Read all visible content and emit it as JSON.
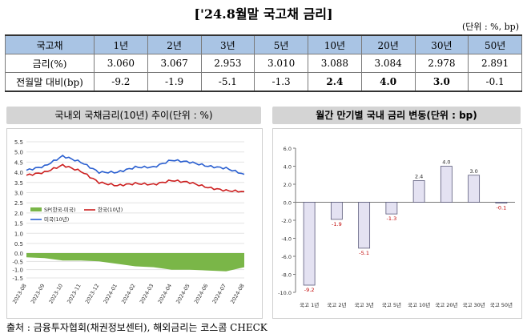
{
  "title": "['24.8월말 국고채 금리]",
  "unit": "(단위 : %, bp)",
  "table": {
    "corner": "국고채",
    "columns": [
      "1년",
      "2년",
      "3년",
      "5년",
      "10년",
      "20년",
      "30년",
      "50년"
    ],
    "rows": [
      {
        "label": "금리(%)",
        "values": [
          "3.060",
          "3.067",
          "2.953",
          "3.010",
          "3.088",
          "3.084",
          "2.978",
          "2.891"
        ]
      },
      {
        "label": "전월말 대비(bp)",
        "values": [
          "-9.2",
          "-1.9",
          "-5.1",
          "-1.3",
          "2.4",
          "4.0",
          "3.0",
          "-0.1"
        ]
      }
    ]
  },
  "left_panel_title": "국내외 국채금리(10년) 추이(단위 : %)",
  "right_panel_title": "월간 만기별 국내 금리 변동(단위 : bp)",
  "source": "출처 : 금융투자협회(채권정보센터), 해외금리는 코스콤 CHECK",
  "colors": {
    "us": "#2a5fd0",
    "kr": "#cc1f1f",
    "spread": "#7ab648",
    "bar_fill": "#e4e2f2",
    "bar_stroke": "#5a5a7a"
  },
  "chart_data": [
    {
      "type": "line",
      "title": "국내외 국채금리(10년) 추이(단위 : %)",
      "x_ticks": [
        "2023-08",
        "2023-09",
        "2023-10",
        "2023-11",
        "2023-12",
        "2024-01",
        "2024-02",
        "2024-03",
        "2024-04",
        "2024-05",
        "2024-06",
        "2024-07",
        "2024-08"
      ],
      "y_ticks_top": [
        "5.5",
        "5.0",
        "4.5",
        "4.0",
        "3.5",
        "3.0",
        "2.5",
        "2.0",
        "1.5",
        "1.0",
        "0.5"
      ],
      "y_ticks_bottom": [
        "0.0",
        "-0.5",
        "-1.0",
        "-1.5"
      ],
      "ylim_top": [
        0.5,
        5.5
      ],
      "ylim_bottom": [
        -1.5,
        0.0
      ],
      "legend": [
        "SP(한국-미국)",
        "한국(10년)",
        "미국(10년)"
      ],
      "x": [
        "2023-08",
        "2023-09",
        "2023-10",
        "2023-11",
        "2023-12",
        "2024-01",
        "2024-02",
        "2024-03",
        "2024-04",
        "2024-05",
        "2024-06",
        "2024-07",
        "2024-08"
      ],
      "series": [
        {
          "name": "미국(10년)",
          "values": [
            4.1,
            4.3,
            4.8,
            4.5,
            4.0,
            4.0,
            4.25,
            4.25,
            4.6,
            4.5,
            4.3,
            4.2,
            3.9
          ]
        },
        {
          "name": "한국(10년)",
          "values": [
            3.85,
            4.0,
            4.35,
            4.05,
            3.5,
            3.35,
            3.45,
            3.4,
            3.6,
            3.5,
            3.25,
            3.1,
            3.05
          ]
        },
        {
          "name": "SP(한국-미국)",
          "values": [
            -0.25,
            -0.3,
            -0.45,
            -0.45,
            -0.5,
            -0.65,
            -0.8,
            -0.85,
            -1.0,
            -1.0,
            -1.05,
            -1.1,
            -0.85
          ]
        }
      ]
    },
    {
      "type": "bar",
      "title": "월간 만기별 국내 금리 변동(단위 : bp)",
      "categories": [
        "국고 1년",
        "국고 2년",
        "국고 3년",
        "국고 5년",
        "국고 10년",
        "국고 20년",
        "국고 30년",
        "국고 50년"
      ],
      "values": [
        -9.2,
        -1.9,
        -5.1,
        -1.3,
        2.4,
        4.0,
        3.0,
        -0.1
      ],
      "labels": [
        "-9.2",
        "-1.9",
        "-5.1",
        "-1.3",
        "2.4",
        "4.0",
        "3.0",
        "-0.1"
      ],
      "y_ticks": [
        "6.0",
        "4.0",
        "2.0",
        "0.0",
        "-2.0",
        "-4.0",
        "-6.0",
        "-8.0",
        "-10.0"
      ],
      "ylim": [
        -10.0,
        6.0
      ]
    }
  ]
}
